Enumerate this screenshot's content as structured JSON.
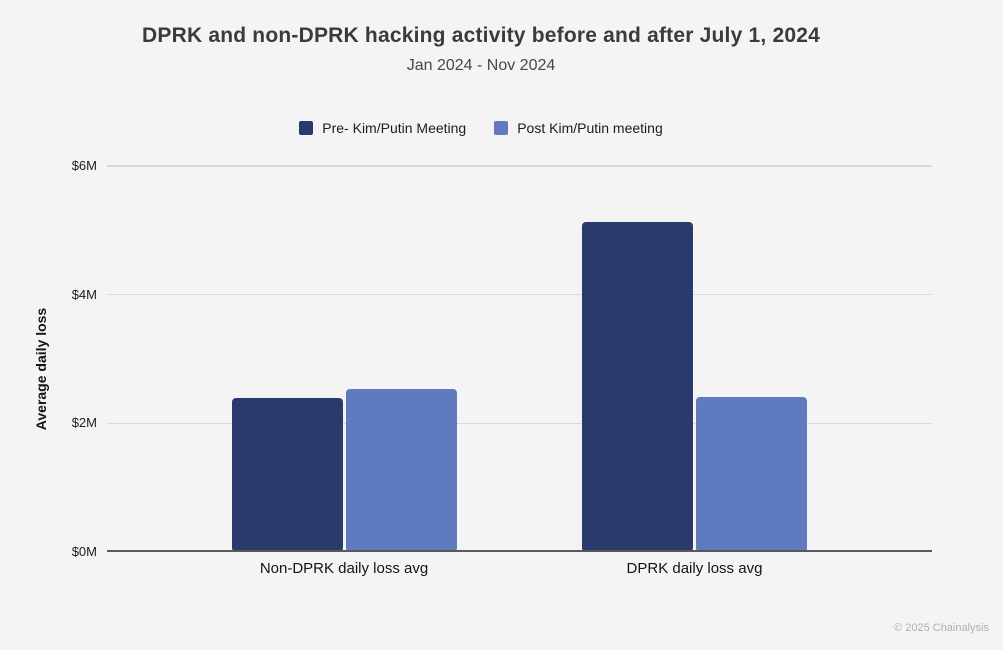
{
  "header": {
    "title": "DPRK and non-DPRK hacking activity before and after July 1, 2024",
    "subtitle": "Jan 2024 - Nov 2024"
  },
  "legend": [
    {
      "label": "Pre- Kim/Putin Meeting",
      "color": "#2a3a6d"
    },
    {
      "label": "Post Kim/Putin meeting",
      "color": "#5f7abe"
    }
  ],
  "chart_data": {
    "type": "bar",
    "title": "DPRK and non-DPRK hacking activity before and after July 1, 2024",
    "subtitle": "Jan 2024 - Nov 2024",
    "categories": [
      "Non-DPRK daily loss avg",
      "DPRK daily loss avg"
    ],
    "series": [
      {
        "name": "Pre- Kim/Putin Meeting",
        "color": "#2a3a6d",
        "values": [
          2.4,
          5.13
        ]
      },
      {
        "name": "Post Kim/Putin meeting",
        "color": "#5f7abe",
        "values": [
          2.53,
          2.41
        ]
      }
    ],
    "ylabel": "Average daily loss",
    "xlabel": "",
    "yticks": [
      "$0M",
      "$2M",
      "$4M",
      "$6M"
    ],
    "ytick_values": [
      0,
      2,
      4,
      6
    ],
    "ylim": [
      0,
      6
    ],
    "unit": "USD millions",
    "grid": true,
    "legend_position": "top"
  },
  "footer": {
    "credit": "© 2025 Chainalysis"
  }
}
